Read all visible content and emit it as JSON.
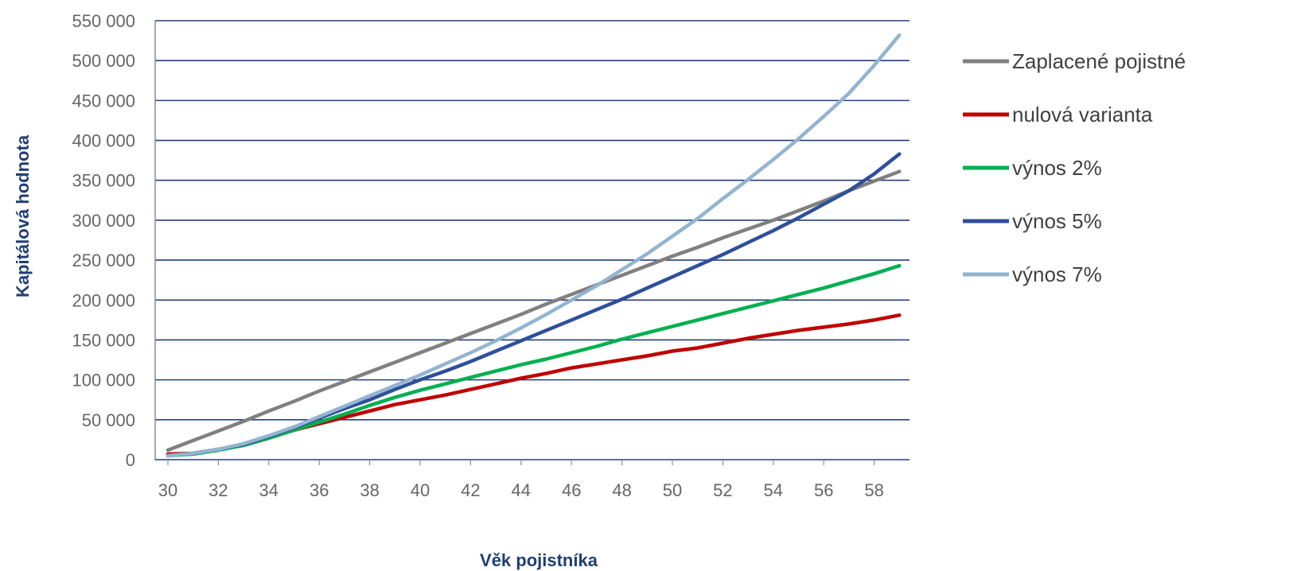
{
  "chart_data": {
    "type": "line",
    "title": "",
    "xlabel": "Věk pojistníka",
    "ylabel": "Kapitálová hodnota",
    "xlim": [
      30,
      59
    ],
    "ylim": [
      0,
      550000
    ],
    "x_ticks": [
      "30",
      "32",
      "34",
      "36",
      "38",
      "40",
      "42",
      "44",
      "46",
      "48",
      "50",
      "52",
      "54",
      "56",
      "58"
    ],
    "y_ticks": [
      "0",
      "50 000",
      "100 000",
      "150 000",
      "200 000",
      "250 000",
      "300 000",
      "350 000",
      "400 000",
      "450 000",
      "500 000",
      "550 000"
    ],
    "grid": "horizontal",
    "legend_position": "right",
    "x": [
      30,
      31,
      32,
      33,
      34,
      35,
      36,
      37,
      38,
      39,
      40,
      41,
      42,
      43,
      44,
      45,
      46,
      47,
      48,
      49,
      50,
      51,
      52,
      53,
      54,
      55,
      56,
      57,
      58,
      59
    ],
    "series": [
      {
        "name": "Zaplacené pojistné",
        "color": "#808080",
        "values": [
          12000,
          24000,
          36000,
          48000,
          61000,
          73000,
          86000,
          98000,
          110000,
          122000,
          134000,
          146000,
          158000,
          170000,
          182000,
          195000,
          207000,
          219000,
          231000,
          243000,
          255000,
          266000,
          278000,
          289000,
          300000,
          312000,
          324000,
          337000,
          349000,
          361000
        ]
      },
      {
        "name": "nulová varianta",
        "color": "#c00000",
        "values": [
          7000,
          8000,
          13000,
          18000,
          27000,
          37000,
          45000,
          53000,
          61000,
          69000,
          75000,
          81000,
          88000,
          95000,
          102000,
          108000,
          115000,
          120000,
          125000,
          130000,
          136000,
          140000,
          146000,
          152000,
          157000,
          162000,
          166000,
          170000,
          175000,
          181000
        ]
      },
      {
        "name": "výnos 2%",
        "color": "#00b050",
        "values": [
          5000,
          7000,
          12000,
          18000,
          27000,
          37000,
          47000,
          57000,
          68000,
          78000,
          87000,
          95000,
          103000,
          111000,
          119000,
          126000,
          134000,
          142000,
          151000,
          159000,
          167000,
          175000,
          183000,
          191000,
          199000,
          207000,
          215000,
          224000,
          233000,
          243000
        ]
      },
      {
        "name": "výnos 5%",
        "color": "#2e4f9b",
        "values": [
          5000,
          8000,
          13000,
          19000,
          29000,
          40000,
          52000,
          64000,
          75000,
          88000,
          100000,
          111000,
          123000,
          136000,
          149000,
          162000,
          175000,
          188000,
          201000,
          215000,
          229000,
          243000,
          257000,
          272000,
          287000,
          303000,
          320000,
          337000,
          358000,
          383000
        ]
      },
      {
        "name": "výnos 7%",
        "color": "#93b4d0",
        "values": [
          5000,
          8000,
          13000,
          20000,
          30000,
          41000,
          54000,
          67000,
          80000,
          93000,
          106000,
          120000,
          134000,
          149000,
          165000,
          182000,
          200000,
          218000,
          238000,
          258000,
          280000,
          302000,
          327000,
          351000,
          376000,
          402000,
          430000,
          459000,
          494000,
          532000
        ]
      }
    ]
  }
}
